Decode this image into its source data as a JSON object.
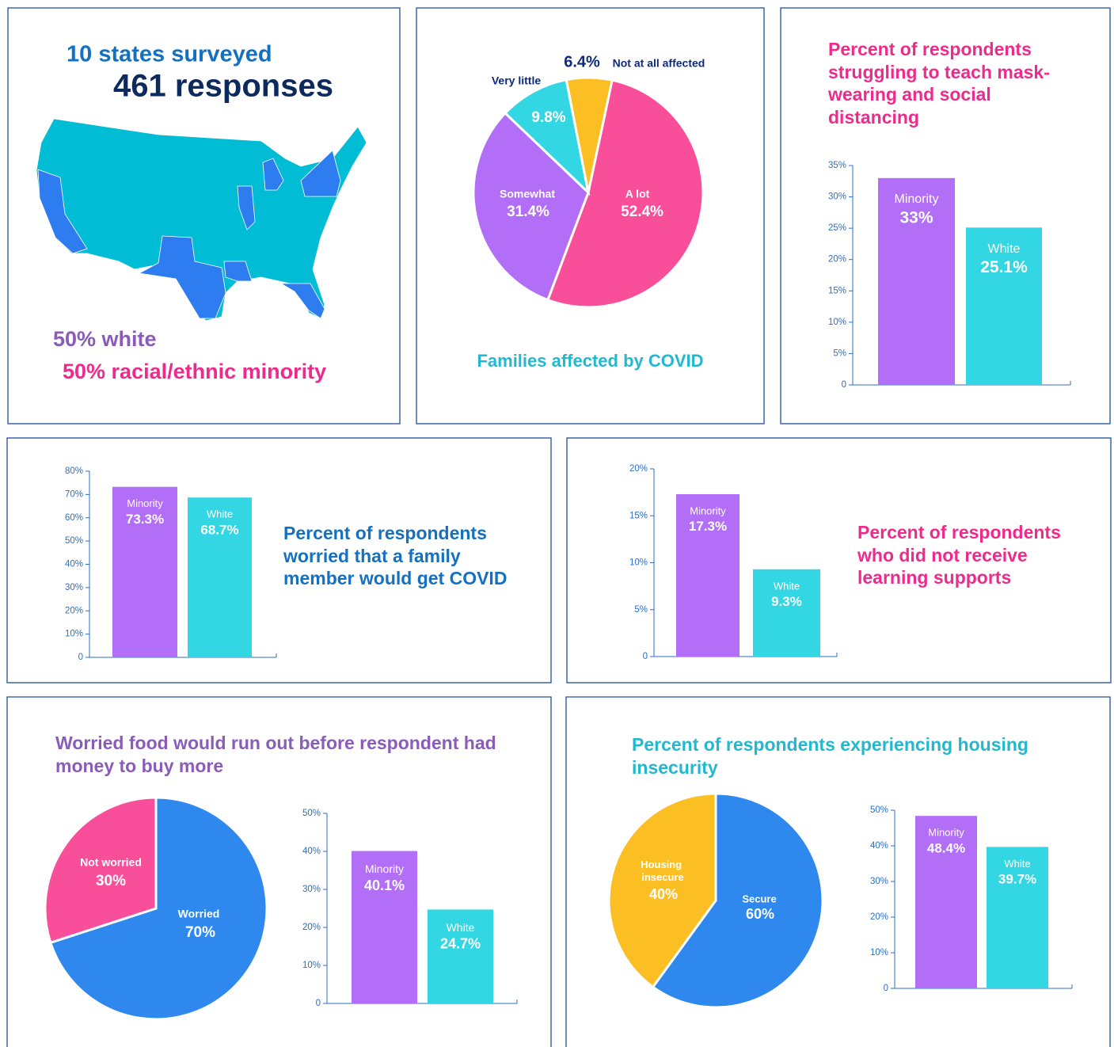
{
  "intro": {
    "states": "10 states surveyed",
    "responses": "461 responses",
    "white": "50% white",
    "minority": "50% racial/ethnic minority"
  },
  "chart_data": [
    {
      "type": "pie",
      "title": "Families affected by COVID",
      "categories": [
        "A lot",
        "Somewhat",
        "Very little",
        "Not at all affected"
      ],
      "values": [
        52.4,
        31.4,
        9.8,
        6.4
      ],
      "value_labels": [
        "52.4%",
        "31.4%",
        "9.8%",
        "6.4%"
      ],
      "colors": [
        "#f94f9b",
        "#b36ef7",
        "#33d6e3",
        "#fbbf24"
      ]
    },
    {
      "type": "bar",
      "title": "Percent of respondents struggling to teach mask-wearing and social distancing",
      "categories": [
        "Minority",
        "White"
      ],
      "values": [
        33,
        25.1
      ],
      "value_labels": [
        "33%",
        "25.1%"
      ],
      "colors": [
        "#b36ef7",
        "#33d6e3"
      ],
      "ylim": [
        0,
        35
      ],
      "yticks": [
        0,
        {
          "value": 5,
          "label": "5%"
        },
        {
          "value": 10,
          "label": "10%"
        },
        {
          "value": 15,
          "label": "15%"
        },
        {
          "value": 20,
          "label": "20%"
        },
        {
          "value": 25,
          "label": "25%"
        },
        {
          "value": 30,
          "label": "30%"
        },
        {
          "value": 35,
          "label": "35%"
        }
      ]
    },
    {
      "type": "bar",
      "title": "Percent of respondents worried that a family member would get COVID",
      "categories": [
        "Minority",
        "White"
      ],
      "values": [
        73.3,
        68.7
      ],
      "value_labels": [
        "73.3%",
        "68.7%"
      ],
      "colors": [
        "#b36ef7",
        "#33d6e3"
      ],
      "ylim": [
        0,
        80
      ],
      "yticks": [
        0,
        {
          "value": 10,
          "label": "10%"
        },
        {
          "value": 20,
          "label": "20%"
        },
        {
          "value": 30,
          "label": "30%"
        },
        {
          "value": 40,
          "label": "40%"
        },
        {
          "value": 50,
          "label": "50%"
        },
        {
          "value": 60,
          "label": "60%"
        },
        {
          "value": 70,
          "label": "70%"
        },
        {
          "value": 80,
          "label": "80%"
        }
      ]
    },
    {
      "type": "bar",
      "title": "Percent of respondents who did not receive learning supports",
      "categories": [
        "Minority",
        "White"
      ],
      "values": [
        17.3,
        9.3
      ],
      "value_labels": [
        "17.3%",
        "9.3%"
      ],
      "colors": [
        "#b36ef7",
        "#33d6e3"
      ],
      "ylim": [
        0,
        20
      ],
      "yticks": [
        0,
        {
          "value": 5,
          "label": "5%"
        },
        {
          "value": 10,
          "label": "10%"
        },
        {
          "value": 15,
          "label": "15%"
        },
        {
          "value": 20,
          "label": "20%"
        }
      ]
    },
    {
      "type": "pie",
      "title": "Worried food would run out before respondent had money to buy more",
      "categories": [
        "Worried",
        "Not worried"
      ],
      "values": [
        70,
        30
      ],
      "value_labels": [
        "70%",
        "30%"
      ],
      "colors": [
        "#2e88ee",
        "#f94f9b"
      ]
    },
    {
      "type": "bar",
      "categories": [
        "Minority",
        "White"
      ],
      "values": [
        40.1,
        24.7
      ],
      "value_labels": [
        "40.1%",
        "24.7%"
      ],
      "colors": [
        "#b36ef7",
        "#33d6e3"
      ],
      "ylim": [
        0,
        50
      ],
      "yticks": [
        0,
        {
          "value": 10,
          "label": "10%"
        },
        {
          "value": 20,
          "label": "20%"
        },
        {
          "value": 30,
          "label": "30%"
        },
        {
          "value": 40,
          "label": "40%"
        },
        {
          "value": 50,
          "label": "50%"
        }
      ]
    },
    {
      "type": "pie",
      "title": "Percent of respondents experiencing housing insecurity",
      "categories": [
        "Secure",
        "Housing insecure"
      ],
      "values": [
        60,
        40
      ],
      "value_labels": [
        "60%",
        "40%"
      ],
      "colors": [
        "#2e88ee",
        "#fbbf24"
      ]
    },
    {
      "type": "bar",
      "categories": [
        "Minority",
        "White"
      ],
      "values": [
        48.4,
        39.7
      ],
      "value_labels": [
        "48.4%",
        "39.7%"
      ],
      "colors": [
        "#b36ef7",
        "#33d6e3"
      ],
      "ylim": [
        0,
        50
      ],
      "yticks": [
        0,
        {
          "value": 10,
          "label": "10%"
        },
        {
          "value": 20,
          "label": "20%"
        },
        {
          "value": 30,
          "label": "30%"
        },
        {
          "value": 40,
          "label": "40%"
        },
        {
          "value": 50,
          "label": "50%"
        }
      ]
    }
  ]
}
